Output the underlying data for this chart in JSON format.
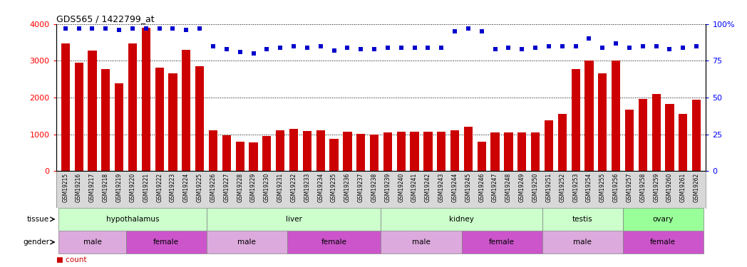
{
  "title": "GDS565 / 1422799_at",
  "samples": [
    "GSM19215",
    "GSM19216",
    "GSM19217",
    "GSM19218",
    "GSM19219",
    "GSM19220",
    "GSM19221",
    "GSM19222",
    "GSM19223",
    "GSM19224",
    "GSM19225",
    "GSM19226",
    "GSM19227",
    "GSM19228",
    "GSM19229",
    "GSM19230",
    "GSM19231",
    "GSM19232",
    "GSM19233",
    "GSM19234",
    "GSM19235",
    "GSM19236",
    "GSM19237",
    "GSM19238",
    "GSM19239",
    "GSM19240",
    "GSM19241",
    "GSM19242",
    "GSM19243",
    "GSM19244",
    "GSM19245",
    "GSM19246",
    "GSM19247",
    "GSM19248",
    "GSM19249",
    "GSM19250",
    "GSM19251",
    "GSM19252",
    "GSM19253",
    "GSM19254",
    "GSM19255",
    "GSM19256",
    "GSM19257",
    "GSM19258",
    "GSM19259",
    "GSM19260",
    "GSM19261",
    "GSM19262"
  ],
  "counts": [
    3480,
    2950,
    3280,
    2780,
    2380,
    3480,
    3900,
    2820,
    2650,
    3300,
    2850,
    1100,
    980,
    800,
    780,
    950,
    1100,
    1140,
    1080,
    1100,
    880,
    1060,
    1010,
    1000,
    1040,
    1060,
    1060,
    1060,
    1060,
    1110,
    1200,
    800,
    1050,
    1050,
    1050,
    1050,
    1380,
    1560,
    2780,
    3000,
    2650,
    3000,
    1660,
    1960,
    2100,
    1820,
    1550,
    1940
  ],
  "percentile": [
    97,
    97,
    97,
    97,
    96,
    97,
    97,
    97,
    97,
    96,
    97,
    85,
    83,
    81,
    80,
    83,
    84,
    85,
    84,
    85,
    82,
    84,
    83,
    83,
    84,
    84,
    84,
    84,
    84,
    95,
    97,
    95,
    83,
    84,
    83,
    84,
    85,
    85,
    85,
    90,
    84,
    87,
    84,
    85,
    85,
    83,
    84,
    85
  ],
  "bar_color": "#cc0000",
  "dot_color": "#0000cc",
  "ylim_left": [
    0,
    4000
  ],
  "ylim_right": [
    0,
    100
  ],
  "yticks_left": [
    0,
    1000,
    2000,
    3000,
    4000
  ],
  "yticks_right": [
    0,
    25,
    50,
    75,
    100
  ],
  "ytick_right_labels": [
    "0",
    "25",
    "50",
    "75",
    "100%"
  ],
  "tissue_groups": [
    {
      "label": "hypothalamus",
      "start": 0,
      "end": 11
    },
    {
      "label": "liver",
      "start": 11,
      "end": 24
    },
    {
      "label": "kidney",
      "start": 24,
      "end": 36
    },
    {
      "label": "testis",
      "start": 36,
      "end": 42
    },
    {
      "label": "ovary",
      "start": 42,
      "end": 48
    }
  ],
  "tissue_color_light": "#ccffcc",
  "tissue_color_dark": "#99ff99",
  "gender_groups": [
    {
      "label": "male",
      "start": 0,
      "end": 5
    },
    {
      "label": "female",
      "start": 5,
      "end": 11
    },
    {
      "label": "male",
      "start": 11,
      "end": 17
    },
    {
      "label": "female",
      "start": 17,
      "end": 24
    },
    {
      "label": "male",
      "start": 24,
      "end": 30
    },
    {
      "label": "female",
      "start": 30,
      "end": 36
    },
    {
      "label": "male",
      "start": 36,
      "end": 42
    },
    {
      "label": "female",
      "start": 42,
      "end": 48
    }
  ],
  "male_color": "#ddaadd",
  "female_color": "#cc55cc",
  "label_fontsize": 7.5,
  "tick_fontsize": 6,
  "xtick_fontsize": 5.5
}
